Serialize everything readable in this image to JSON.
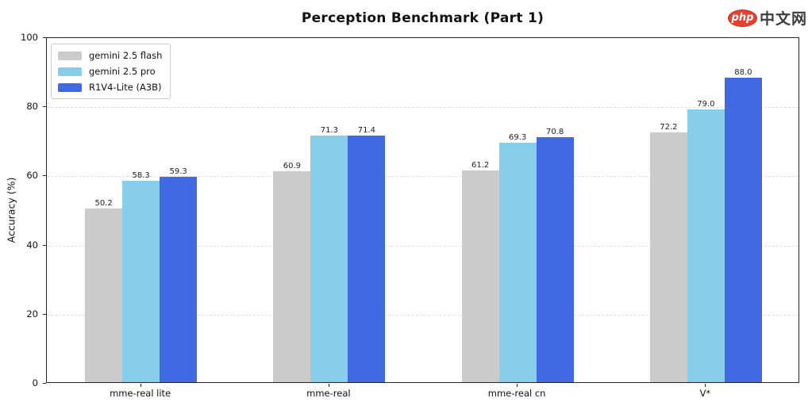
{
  "logo": {
    "badge": "php",
    "text": "中文网"
  },
  "chart_data": {
    "type": "bar",
    "title": "Perception Benchmark (Part 1)",
    "xlabel": "",
    "ylabel": "Accuracy (%)",
    "ylim": [
      0,
      100
    ],
    "yticks": [
      0,
      20,
      40,
      60,
      80,
      100
    ],
    "grid": "horizontal dashed gridlines at y ticks",
    "legend_position": "upper left",
    "value_labels": true,
    "value_label_format": "1 decimal place",
    "categories": [
      "mme-real lite",
      "mme-real",
      "mme-real cn",
      "V*"
    ],
    "series": [
      {
        "name": "gemini 2.5 flash",
        "color": "#cbcbcb",
        "values": [
          50.2,
          60.9,
          61.2,
          72.2
        ]
      },
      {
        "name": "gemini 2.5 pro",
        "color": "#87ceeb",
        "values": [
          58.3,
          71.3,
          69.3,
          79.0
        ]
      },
      {
        "name": "R1V4-Lite (A3B)",
        "color": "#4169e1",
        "values": [
          59.3,
          71.4,
          70.8,
          88.0
        ]
      }
    ]
  }
}
